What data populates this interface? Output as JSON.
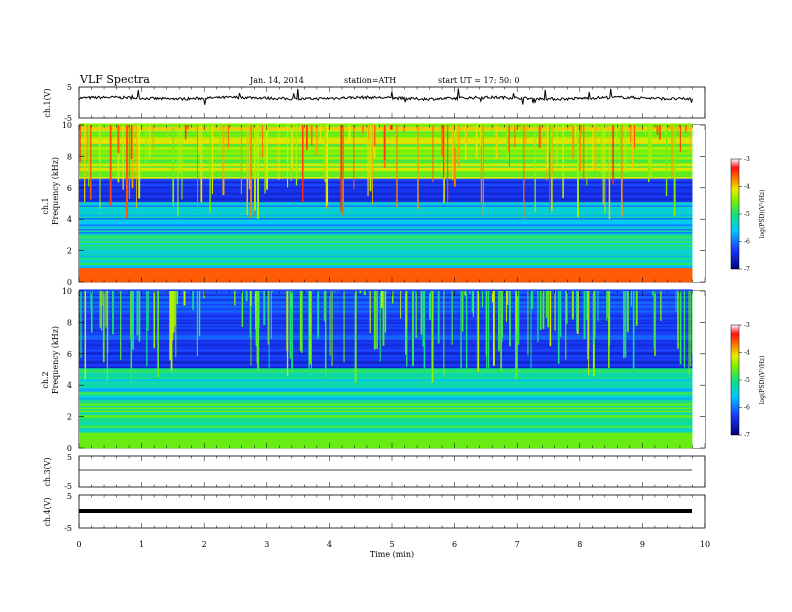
{
  "header": {
    "title": "VLF  Spectra",
    "date": "Jan. 14, 2014",
    "station": "station=ATH",
    "start": "start  UT =   17: 50: 0"
  },
  "chart_data": [
    {
      "type": "line",
      "name": "ch1-waveform",
      "ylabel": "ch.1(V)",
      "ylim": [
        -5,
        5
      ],
      "yticks": [
        "5",
        "-5"
      ],
      "xlim": [
        0,
        10
      ],
      "note": "noisy waveform around +1.5 V with sparse spikes"
    },
    {
      "type": "heatmap",
      "name": "ch1-spectrogram",
      "ylabel_line1": "ch.1",
      "ylabel_line2": "Frequency  (kHz)",
      "ylim": [
        0,
        10
      ],
      "yticks": [
        "0",
        "2",
        "4",
        "6",
        "8",
        "10"
      ],
      "xlim": [
        0,
        9.8
      ],
      "colorbar": {
        "label": "log(PSD)(V²/Hz)",
        "range": [
          -7,
          -3
        ],
        "ticks": [
          "-3",
          "-4",
          "-5",
          "-6",
          "-7"
        ]
      }
    },
    {
      "type": "heatmap",
      "name": "ch2-spectrogram",
      "ylabel_line1": "ch.2",
      "ylabel_line2": "Frequency  (kHz)",
      "ylim": [
        0,
        10
      ],
      "yticks": [
        "0",
        "2",
        "4",
        "6",
        "8",
        "10"
      ],
      "xlim": [
        0,
        9.8
      ],
      "colorbar": {
        "label": "log(PSD)(V²/Hz)",
        "range": [
          -7,
          -3
        ],
        "ticks": [
          "-3",
          "-4",
          "-5",
          "-6",
          "-7"
        ]
      }
    },
    {
      "type": "line",
      "name": "ch3-waveform",
      "ylabel": "ch.3(V)",
      "ylim": [
        -5,
        5
      ],
      "yticks": [
        "5",
        "-5"
      ],
      "xlim": [
        0,
        10
      ],
      "note": "nearly flat trace near +0.5 V"
    },
    {
      "type": "line",
      "name": "ch4-waveform",
      "ylabel": "ch.4(V)",
      "ylim": [
        -5,
        5
      ],
      "yticks": [
        "5",
        "-5"
      ],
      "xlim": [
        0,
        10
      ],
      "xlabel": "Time  (min)",
      "xticks": [
        "0",
        "1",
        "2",
        "3",
        "4",
        "5",
        "6",
        "7",
        "8",
        "9",
        "10"
      ],
      "note": "thick flat trace near +1 V"
    }
  ]
}
